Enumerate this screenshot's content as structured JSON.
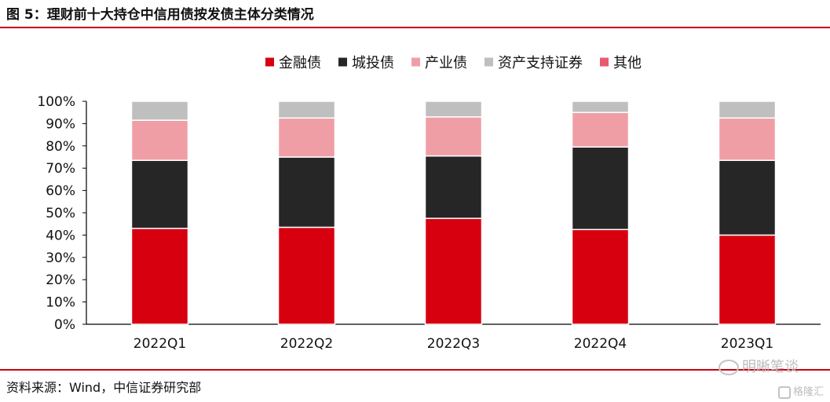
{
  "figure_title": "图 5：理财前十大持仓中信用债按发债主体分类情况",
  "source": "资料来源：Wind，中信证券研究部",
  "watermark": "明晰笔谈",
  "watermark2": "格隆汇",
  "chart_data": {
    "type": "bar",
    "stacked": true,
    "categories": [
      "2022Q1",
      "2022Q2",
      "2022Q3",
      "2022Q4",
      "2023Q1"
    ],
    "series": [
      {
        "name": "金融债",
        "color": "#d7000f",
        "values": [
          43,
          43.5,
          47.5,
          42.5,
          40
        ]
      },
      {
        "name": "城投债",
        "color": "#262626",
        "values": [
          30.5,
          31.5,
          28,
          37,
          33.5
        ]
      },
      {
        "name": "产业债",
        "color": "#f09ea6",
        "values": [
          18,
          17.5,
          17.5,
          15.5,
          19
        ]
      },
      {
        "name": "资产支持证券",
        "color": "#bfbfbf",
        "values": [
          8.5,
          7.5,
          7,
          5,
          7.5
        ]
      },
      {
        "name": "其他",
        "color": "#e85a6e",
        "values": [
          0,
          0,
          0,
          0,
          0
        ]
      }
    ],
    "yticks": [
      "0%",
      "10%",
      "20%",
      "30%",
      "40%",
      "50%",
      "60%",
      "70%",
      "80%",
      "90%",
      "100%"
    ],
    "ylim": [
      0,
      100
    ],
    "legend_position": "top-center",
    "grid": false
  }
}
